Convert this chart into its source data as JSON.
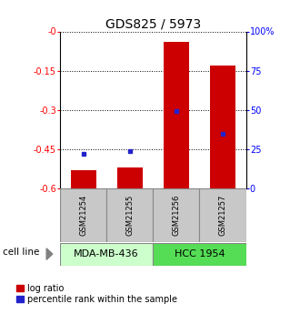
{
  "title": "GDS825 / 5973",
  "samples": [
    "GSM21254",
    "GSM21255",
    "GSM21256",
    "GSM21257"
  ],
  "log_ratios": [
    -0.53,
    -0.52,
    -0.04,
    -0.13
  ],
  "percentile_ranks": [
    22,
    24,
    49,
    35
  ],
  "cell_lines": [
    {
      "label": "MDA-MB-436",
      "samples": [
        0,
        1
      ],
      "color": "#ccffcc"
    },
    {
      "label": "HCC 1954",
      "samples": [
        2,
        3
      ],
      "color": "#55dd55"
    }
  ],
  "ylim_left": [
    -0.6,
    0.0
  ],
  "ylim_right": [
    0,
    100
  ],
  "yticks_left": [
    0.0,
    -0.15,
    -0.3,
    -0.45,
    -0.6
  ],
  "ytick_labels_left": [
    "-0",
    "-0.15",
    "-0.3",
    "-0.45",
    "-0.6"
  ],
  "yticks_right": [
    0,
    25,
    50,
    75,
    100
  ],
  "ytick_labels_right": [
    "0",
    "25",
    "50",
    "75",
    "100%"
  ],
  "bar_color": "#cc0000",
  "dot_color": "#2222cc",
  "title_fontsize": 10,
  "tick_fontsize": 7,
  "sample_fontsize": 6,
  "cell_fontsize": 8,
  "legend_fontsize": 7
}
